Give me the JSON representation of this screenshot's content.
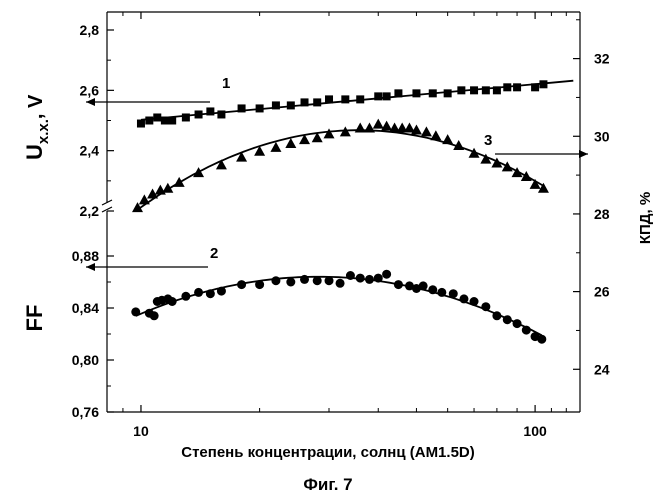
{
  "chart_data": {
    "type": "scatter",
    "x_axis": {
      "label": "Степень концентрации, солнц (AM1.5D)",
      "scale": "log",
      "ticks": [
        "10",
        "100"
      ],
      "range": [
        8.2,
        130
      ]
    },
    "left_axis_upper": {
      "label_main": "U",
      "label_sub": "x.x.",
      "label_unit": ", V",
      "range": [
        2.2,
        2.8
      ],
      "ticks": [
        "2,2",
        "2,4",
        "2,6",
        "2,8"
      ]
    },
    "left_axis_lower": {
      "label": "FF",
      "range": [
        0.76,
        0.9
      ],
      "ticks": [
        "0,76",
        "0,80",
        "0,84",
        "0,88"
      ]
    },
    "right_axis": {
      "label": "КПД, %",
      "range": [
        22.9,
        33.2
      ],
      "ticks": [
        "24",
        "26",
        "28",
        "30",
        "32"
      ]
    },
    "series": [
      {
        "marker": "square",
        "axis": "left_axis_upper",
        "fit": "line",
        "x": [
          10.0,
          10.5,
          11.0,
          11.5,
          12.0,
          13.0,
          14.0,
          15.0,
          16.0,
          18.0,
          20.0,
          22.0,
          24.0,
          26.0,
          28.0,
          30.0,
          33.0,
          36.0,
          40.0,
          42.0,
          45.0,
          50.0,
          55.0,
          60.0,
          65.0,
          70.0,
          75.0,
          80.0,
          85.0,
          90.0,
          100.0,
          105.0
        ],
        "y": [
          2.49,
          2.5,
          2.51,
          2.5,
          2.5,
          2.51,
          2.52,
          2.53,
          2.52,
          2.54,
          2.54,
          2.55,
          2.55,
          2.56,
          2.56,
          2.57,
          2.57,
          2.57,
          2.58,
          2.58,
          2.59,
          2.59,
          2.59,
          2.59,
          2.6,
          2.6,
          2.6,
          2.6,
          2.61,
          2.61,
          2.61,
          2.62
        ]
      },
      {
        "marker": "triangle",
        "axis": "right_axis",
        "fit": "curve",
        "x": [
          9.8,
          10.2,
          10.7,
          11.2,
          11.7,
          12.5,
          14.0,
          16.0,
          18.0,
          20.0,
          22.0,
          24.0,
          26.0,
          28.0,
          30.0,
          33.0,
          36.0,
          38.0,
          40.0,
          42.0,
          44.0,
          46.0,
          48.0,
          50.0,
          53.0,
          56.0,
          60.0,
          64.0,
          70.0,
          75.0,
          80.0,
          85.0,
          90.0,
          95.0,
          100.0,
          105.0
        ],
        "y": [
          28.15,
          28.35,
          28.5,
          28.6,
          28.65,
          28.8,
          29.05,
          29.25,
          29.45,
          29.6,
          29.7,
          29.8,
          29.9,
          29.95,
          30.05,
          30.1,
          30.2,
          30.2,
          30.3,
          30.25,
          30.2,
          30.2,
          30.2,
          30.15,
          30.1,
          30.0,
          29.9,
          29.75,
          29.55,
          29.4,
          29.3,
          29.2,
          29.05,
          28.95,
          28.75,
          28.65
        ]
      },
      {
        "marker": "circle",
        "axis": "left_axis_lower",
        "fit": "curve",
        "x": [
          9.7,
          10.5,
          10.8,
          11.0,
          11.3,
          11.7,
          12.0,
          13.0,
          14.0,
          15.0,
          16.0,
          18.0,
          20.0,
          22.0,
          24.0,
          26.0,
          28.0,
          30.0,
          32.0,
          34.0,
          36.0,
          38.0,
          40.0,
          42.0,
          45.0,
          48.0,
          50.0,
          52.0,
          55.0,
          58.0,
          62.0,
          66.0,
          70.0,
          75.0,
          80.0,
          85.0,
          90.0,
          95.0,
          100.0,
          104.0
        ],
        "y": [
          0.837,
          0.836,
          0.834,
          0.845,
          0.846,
          0.847,
          0.845,
          0.849,
          0.852,
          0.851,
          0.853,
          0.858,
          0.858,
          0.861,
          0.86,
          0.862,
          0.861,
          0.861,
          0.859,
          0.865,
          0.863,
          0.862,
          0.863,
          0.866,
          0.858,
          0.857,
          0.855,
          0.857,
          0.854,
          0.852,
          0.851,
          0.847,
          0.845,
          0.841,
          0.834,
          0.831,
          0.828,
          0.823,
          0.818,
          0.816
        ]
      }
    ],
    "annotations": [
      {
        "text": "1",
        "arrow": "left"
      },
      {
        "text": "2",
        "arrow": "left"
      },
      {
        "text": "3",
        "arrow": "right"
      }
    ],
    "caption": "Фиг. 7"
  }
}
